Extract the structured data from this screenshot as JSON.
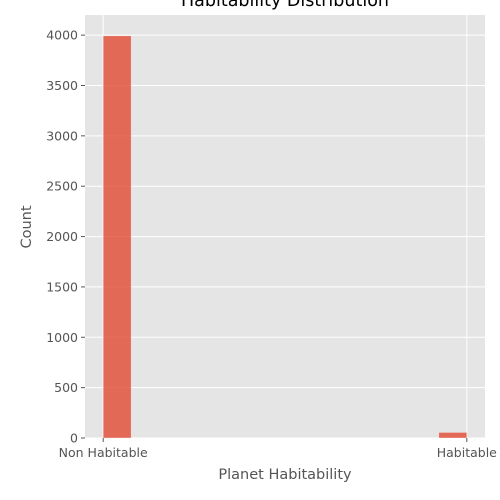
{
  "chart_data": {
    "type": "bar",
    "title": "Habitability Distribution",
    "xlabel": "Planet Habitability",
    "ylabel": "Count",
    "categories": [
      "Non Habitable",
      "Habitable"
    ],
    "x_positions": [
      0,
      1
    ],
    "bins": [
      {
        "from": 0.0,
        "to": 0.0769,
        "value": 3993
      },
      {
        "from": 0.9231,
        "to": 1.0,
        "value": 55
      }
    ],
    "xlim": [
      -0.05,
      1.05
    ],
    "ylim": [
      0,
      4200
    ],
    "yticks": [
      0,
      500,
      1000,
      1500,
      2000,
      2500,
      3000,
      3500,
      4000
    ],
    "grid": true,
    "legend": "none",
    "colors": {
      "bar": "#E24A33",
      "plot_background": "#E5E5E5",
      "grid": "#FFFFFF",
      "tick_text": "#555555"
    }
  }
}
